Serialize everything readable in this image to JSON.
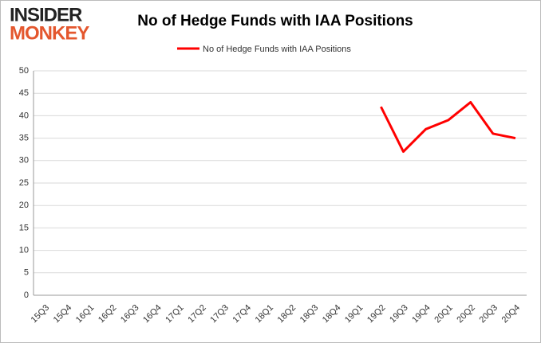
{
  "logo": {
    "line1": "INSIDER",
    "line2": "MONKEY"
  },
  "chart_data": {
    "type": "line",
    "title": "No of Hedge Funds with IAA Positions",
    "categories": [
      "15Q3",
      "15Q4",
      "16Q1",
      "16Q2",
      "16Q3",
      "16Q4",
      "17Q1",
      "17Q2",
      "17Q3",
      "17Q4",
      "18Q1",
      "18Q2",
      "18Q3",
      "18Q4",
      "19Q1",
      "19Q2",
      "19Q3",
      "19Q4",
      "20Q1",
      "20Q2",
      "20Q3",
      "20Q4"
    ],
    "series": [
      {
        "name": "No of Hedge Funds with IAA Positions",
        "color": "#ff0000",
        "values": [
          null,
          null,
          null,
          null,
          null,
          null,
          null,
          null,
          null,
          null,
          null,
          null,
          null,
          null,
          null,
          42,
          32,
          37,
          39,
          43,
          36,
          35
        ]
      }
    ],
    "ylim": [
      0,
      50
    ],
    "yticks": [
      0,
      5,
      10,
      15,
      20,
      25,
      30,
      35,
      40,
      45,
      50
    ],
    "grid": true,
    "legend": "top"
  }
}
